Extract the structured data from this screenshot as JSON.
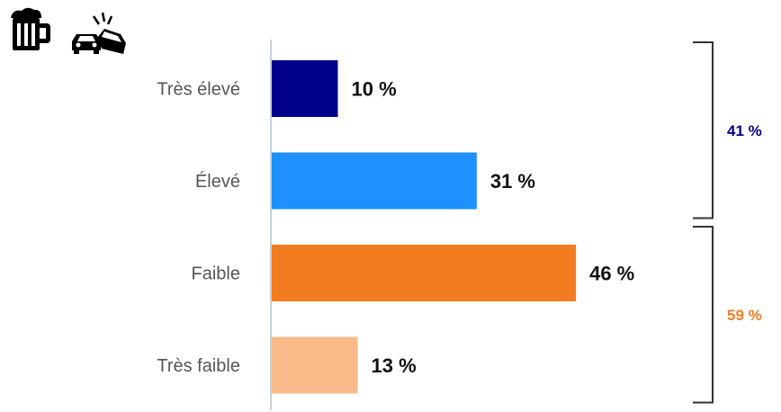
{
  "chart_data": {
    "type": "bar",
    "orientation": "horizontal",
    "categories": [
      "Très élevé",
      "Élevé",
      "Faible",
      "Très faible"
    ],
    "values": [
      10,
      31,
      46,
      13
    ],
    "value_labels": [
      "10 %",
      "31 %",
      "46 %",
      "13 %"
    ],
    "colors": [
      "#00008b",
      "#1e90ff",
      "#f47c20",
      "#f9b988"
    ],
    "xlim": [
      0,
      50
    ],
    "grid": false,
    "legend": "none",
    "groups": [
      {
        "label": "41 %",
        "from": 0,
        "to": 1,
        "color": "#00008b"
      },
      {
        "label": "59 %",
        "from": 2,
        "to": 3,
        "color": "#f47c20"
      }
    ]
  },
  "icons": [
    "beer-mug-icon",
    "car-crash-icon"
  ]
}
